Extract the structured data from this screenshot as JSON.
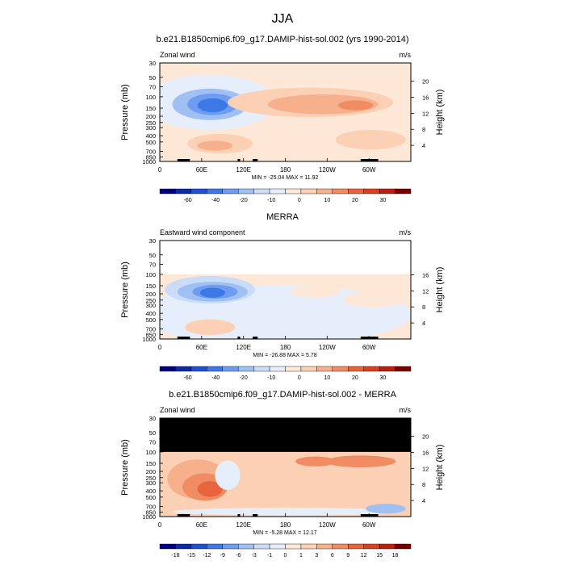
{
  "figure_title": "JJA",
  "chart_data": [
    {
      "type": "heatmap",
      "title": "b.e21.B1850cmip6.f09_g17.DAMIP-hist-sol.002 (yrs 1990-2014)",
      "left_label": "Zonal wind",
      "units": "m/s",
      "ylabel": "Pressure (mb)",
      "ylabel_right": "Height (km)",
      "x_ticks": [
        "0",
        "60E",
        "120E",
        "180",
        "120W",
        "60W"
      ],
      "y_ticks": [
        "30",
        "50",
        "70",
        "100",
        "150",
        "200",
        "250",
        "300",
        "400",
        "500",
        "700",
        "850",
        "1000"
      ],
      "height_ticks": [
        "20",
        "16",
        "12",
        "8",
        "4"
      ],
      "stats": "MIN = -25.04  MAX =  11.92",
      "min": -25.04,
      "max": 11.92,
      "colorbar_labels": [
        "-60",
        "-40",
        "-20",
        "-10",
        "0",
        "10",
        "20",
        "30"
      ],
      "colorbar_colors": [
        "#000080",
        "#0a2aa8",
        "#1e50d0",
        "#3c78e6",
        "#6e9cf0",
        "#a0c0f4",
        "#cadcf8",
        "#e6eefb",
        "#fde8d8",
        "#fbd0b4",
        "#f6b08c",
        "#f08c64",
        "#e8643c",
        "#d84020",
        "#b82010",
        "#780000"
      ],
      "masked_top": false
    },
    {
      "type": "heatmap",
      "title": "MERRA",
      "left_label": "Eastward wind component",
      "units": "m/s",
      "ylabel": "Pressure (mb)",
      "ylabel_right": "Height (km)",
      "x_ticks": [
        "0",
        "60E",
        "120E",
        "180",
        "120W",
        "60W"
      ],
      "y_ticks": [
        "30",
        "50",
        "70",
        "100",
        "150",
        "200",
        "250",
        "300",
        "400",
        "500",
        "700",
        "850",
        "1000"
      ],
      "height_ticks": [
        "16",
        "12",
        "8",
        "4"
      ],
      "stats": "MIN = -26.88  MAX =   5.78",
      "min": -26.88,
      "max": 5.78,
      "colorbar_labels": [
        "-60",
        "-40",
        "-20",
        "-10",
        "0",
        "10",
        "20",
        "30"
      ],
      "colorbar_colors": [
        "#000080",
        "#0a2aa8",
        "#1e50d0",
        "#3c78e6",
        "#6e9cf0",
        "#a0c0f4",
        "#cadcf8",
        "#e6eefb",
        "#fde8d8",
        "#fbd0b4",
        "#f6b08c",
        "#f08c64",
        "#e8643c",
        "#d84020",
        "#b82010",
        "#780000"
      ],
      "masked_top": "white"
    },
    {
      "type": "heatmap",
      "title": "b.e21.B1850cmip6.f09_g17.DAMIP-hist-sol.002 - MERRA",
      "left_label": "Zonal wind",
      "units": "m/s",
      "ylabel": "Pressure (mb)",
      "ylabel_right": "Height (km)",
      "x_ticks": [
        "0",
        "60E",
        "120E",
        "180",
        "120W",
        "60W"
      ],
      "y_ticks": [
        "30",
        "50",
        "70",
        "100",
        "150",
        "200",
        "250",
        "300",
        "400",
        "500",
        "700",
        "850",
        "1000"
      ],
      "height_ticks": [
        "20",
        "16",
        "12",
        "8",
        "4"
      ],
      "stats": "MIN =  -5.28  MAX =  12.17",
      "min": -5.28,
      "max": 12.17,
      "colorbar_labels": [
        "-18",
        "-15",
        "-12",
        "-9",
        "-6",
        "-3",
        "-1",
        "0",
        "1",
        "3",
        "6",
        "9",
        "12",
        "15",
        "18"
      ],
      "colorbar_colors": [
        "#000080",
        "#0a2aa8",
        "#1e50d0",
        "#3c78e6",
        "#6e9cf0",
        "#a0c0f4",
        "#cadcf8",
        "#e6eefb",
        "#fde8d8",
        "#fbd0b4",
        "#f6b08c",
        "#f08c64",
        "#e8643c",
        "#d84020",
        "#b82010",
        "#780000"
      ],
      "masked_top": "black"
    }
  ]
}
